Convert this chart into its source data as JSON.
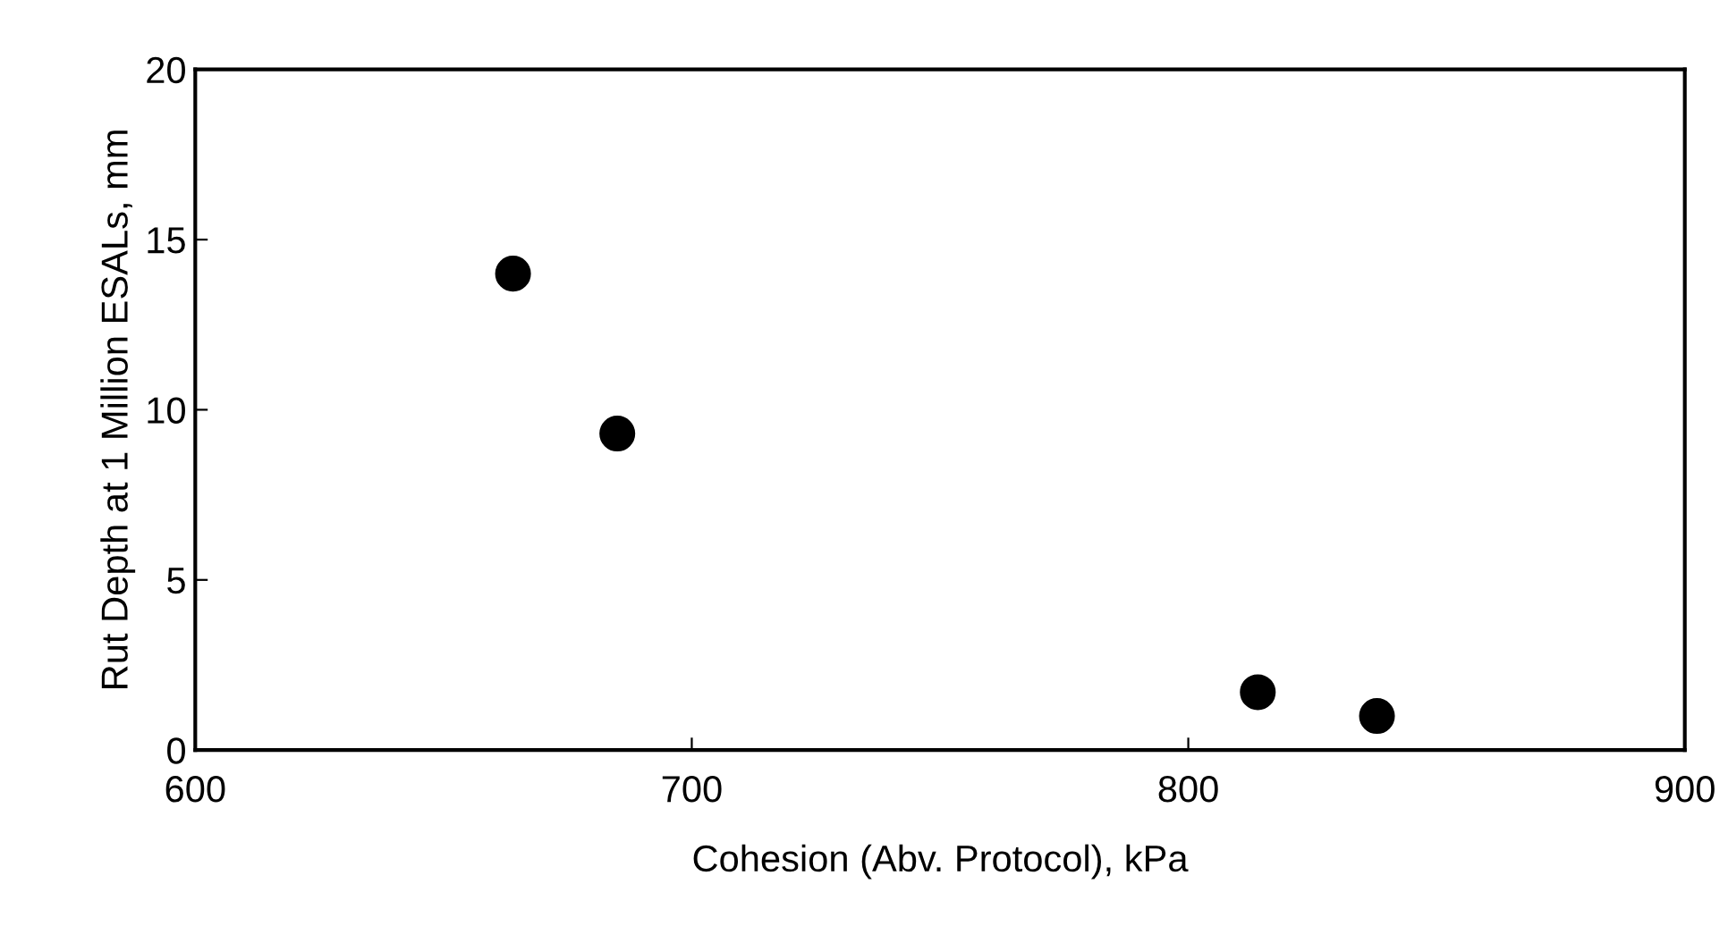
{
  "chart_data": {
    "type": "scatter",
    "xlabel": "Cohesion (Abv. Protocol), kPa",
    "ylabel": "Rut Depth at 1 Million ESALs, mm",
    "x": [
      664,
      685,
      814,
      838
    ],
    "series": [
      {
        "color": "#000000",
        "values": [
          14.0,
          9.3,
          1.7,
          1.0
        ]
      }
    ],
    "xlim": [
      600,
      900
    ],
    "xticks": [
      600,
      700,
      800,
      900
    ],
    "ylim": [
      0,
      20
    ],
    "yticks": [
      0,
      5,
      10,
      15,
      20
    ],
    "marker": "circle",
    "grid": false,
    "legend": false
  }
}
